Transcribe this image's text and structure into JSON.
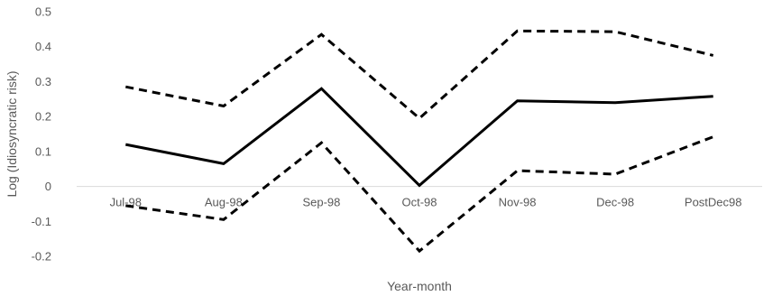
{
  "chart_data": {
    "type": "line",
    "title": "",
    "xlabel": "Year-month",
    "ylabel": "Log (Idiosyncratic risk)",
    "categories": [
      "Jul-98",
      "Aug-98",
      "Sep-98",
      "Oct-98",
      "Nov-98",
      "Dec-98",
      "PostDec98"
    ],
    "ylim": [
      -0.2,
      0.5
    ],
    "yticks": [
      "-0.2",
      "-0.1",
      "0",
      "0.1",
      "0.2",
      "0.3",
      "0.4",
      "0.5"
    ],
    "grid": false,
    "series": [
      {
        "style": "dashed",
        "values": [
          0.285,
          0.23,
          0.435,
          0.195,
          0.445,
          0.443,
          0.375
        ]
      },
      {
        "style": "solid",
        "values": [
          0.12,
          0.065,
          0.28,
          0.003,
          0.245,
          0.24,
          0.258
        ]
      },
      {
        "style": "dashed",
        "values": [
          -0.055,
          -0.095,
          0.125,
          -0.185,
          0.045,
          0.035,
          0.142
        ]
      }
    ],
    "colors": {
      "line": "#000000",
      "axis": "#d9d9d9",
      "text": "#595959"
    }
  }
}
